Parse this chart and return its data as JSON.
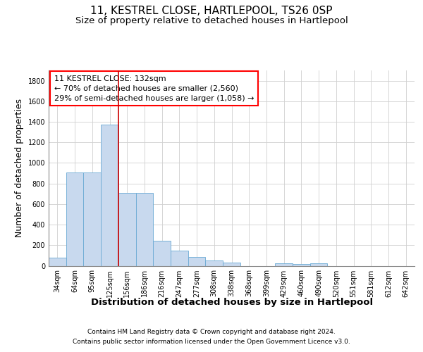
{
  "title": "11, KESTREL CLOSE, HARTLEPOOL, TS26 0SP",
  "subtitle": "Size of property relative to detached houses in Hartlepool",
  "xlabel": "Distribution of detached houses by size in Hartlepool",
  "ylabel": "Number of detached properties",
  "footer_line1": "Contains HM Land Registry data © Crown copyright and database right 2024.",
  "footer_line2": "Contains public sector information licensed under the Open Government Licence v3.0.",
  "categories": [
    "34sqm",
    "64sqm",
    "95sqm",
    "125sqm",
    "156sqm",
    "186sqm",
    "216sqm",
    "247sqm",
    "277sqm",
    "308sqm",
    "338sqm",
    "368sqm",
    "399sqm",
    "429sqm",
    "460sqm",
    "490sqm",
    "520sqm",
    "551sqm",
    "581sqm",
    "612sqm",
    "642sqm"
  ],
  "bar_heights": [
    80,
    910,
    910,
    1370,
    710,
    710,
    245,
    145,
    85,
    50,
    30,
    0,
    0,
    25,
    15,
    25,
    0,
    0,
    0,
    0,
    0
  ],
  "bar_color": "#c8d9ee",
  "bar_edgecolor": "#6aaad4",
  "vline_color": "#cc0000",
  "vline_pos": 3.5,
  "annotation_line1": "11 KESTREL CLOSE: 132sqm",
  "annotation_line2": "← 70% of detached houses are smaller (2,560)",
  "annotation_line3": "29% of semi-detached houses are larger (1,058) →",
  "ylim_max": 1900,
  "yticks": [
    0,
    200,
    400,
    600,
    800,
    1000,
    1200,
    1400,
    1600,
    1800
  ],
  "grid_color": "#d0d0d0",
  "title_fontsize": 11,
  "subtitle_fontsize": 9.5,
  "ylabel_fontsize": 9,
  "xlabel_fontsize": 9.5,
  "tick_fontsize": 7,
  "annotation_fontsize": 8,
  "footer_fontsize": 6.5
}
